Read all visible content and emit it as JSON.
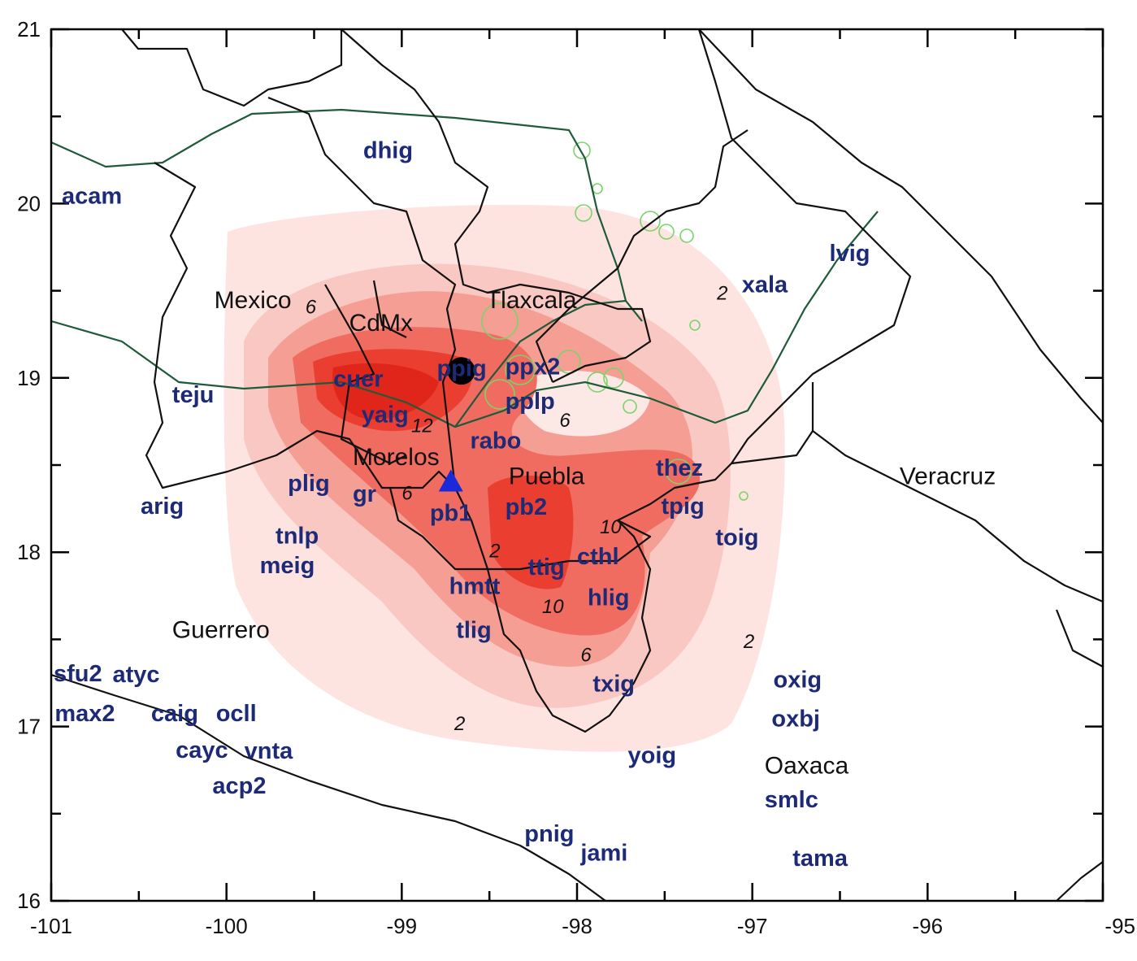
{
  "map": {
    "x_ticks": [
      "-101",
      "-100",
      "-99",
      "-98",
      "-97",
      "-96",
      "-95"
    ],
    "y_ticks": [
      "21",
      "20",
      "19",
      "18",
      "17",
      "16"
    ],
    "lon_range": [
      -101,
      -95
    ],
    "lat_range": [
      16,
      21
    ],
    "contour_colors": [
      "#fde4e1",
      "#f9c8c2",
      "#f59e94",
      "#f06c60",
      "#ea3f30",
      "#e0261a"
    ],
    "station_color": "#1c2a78",
    "regions": [
      {
        "name": "Mexico",
        "lon": -100.07,
        "lat": 19.4
      },
      {
        "name": "CdMx",
        "lon": -99.3,
        "lat": 19.27
      },
      {
        "name": "Tlaxcala",
        "lon": -98.52,
        "lat": 19.4
      },
      {
        "name": "Morelos",
        "lon": -99.28,
        "lat": 18.5
      },
      {
        "name": "Puebla",
        "lon": -98.39,
        "lat": 18.39
      },
      {
        "name": "Veracruz",
        "lon": -96.16,
        "lat": 18.39
      },
      {
        "name": "Guerrero",
        "lon": -100.31,
        "lat": 17.51
      },
      {
        "name": "Oaxaca",
        "lon": -96.93,
        "lat": 16.73
      }
    ],
    "contour_labels": [
      {
        "text": "6",
        "lon": -99.55,
        "lat": 19.37
      },
      {
        "text": "12",
        "lon": -99.15,
        "lat": 18.69
      },
      {
        "text": "6",
        "lon": -99.0,
        "lat": 18.45
      },
      {
        "text": "6",
        "lon": -98.1,
        "lat": 18.72
      },
      {
        "text": "2",
        "lon": -98.5,
        "lat": 17.97
      },
      {
        "text": "10",
        "lon": -97.87,
        "lat": 17.96
      },
      {
        "text": "10",
        "lon": -98.2,
        "lat": 17.65
      },
      {
        "text": "6",
        "lon": -97.98,
        "lat": 17.3
      },
      {
        "text": "2",
        "lon": -97.05,
        "lat": 17.45
      },
      {
        "text": "2",
        "lon": -98.7,
        "lat": 16.98
      },
      {
        "text": "2",
        "lon": -97.1,
        "lat": 19.45
      }
    ],
    "stations": [
      {
        "name": "dhig",
        "lon": -99.22,
        "lat": 20.26
      },
      {
        "name": "acam",
        "lon": -100.94,
        "lat": 20.0
      },
      {
        "name": "lvig",
        "lon": -96.56,
        "lat": 19.67
      },
      {
        "name": "xala",
        "lon": -97.06,
        "lat": 19.49
      },
      {
        "name": "teju",
        "lon": -100.31,
        "lat": 18.86
      },
      {
        "name": "cuer",
        "lon": -99.39,
        "lat": 18.95
      },
      {
        "name": "yaig",
        "lon": -99.23,
        "lat": 18.82
      },
      {
        "name": "ppig",
        "lon": -98.8,
        "lat": 19.01
      },
      {
        "name": "ppx2",
        "lon": -98.41,
        "lat": 19.02
      },
      {
        "name": "pplp",
        "lon": -98.41,
        "lat": 18.97
      },
      {
        "name": "rabo",
        "lon": -98.61,
        "lat": 18.52
      },
      {
        "name": "plig",
        "lon": -99.65,
        "lat": 18.35
      },
      {
        "name": "gr",
        "lon": -99.28,
        "lat": 18.29
      },
      {
        "name": "pb1",
        "lon": -98.84,
        "lat": 18.18
      },
      {
        "name": "pb2",
        "lon": -98.41,
        "lat": 18.29
      },
      {
        "name": "thez",
        "lon": -97.55,
        "lat": 18.44
      },
      {
        "name": "tpig",
        "lon": -97.52,
        "lat": 18.37
      },
      {
        "name": "arig",
        "lon": -100.49,
        "lat": 18.22
      },
      {
        "name": "tnlp",
        "lon": -99.72,
        "lat": 18.05
      },
      {
        "name": "meig",
        "lon": -99.81,
        "lat": 17.88
      },
      {
        "name": "toig",
        "lon": -97.21,
        "lat": 18.04
      },
      {
        "name": "ttig",
        "lon": -98.28,
        "lat": 17.87
      },
      {
        "name": "cthl",
        "lon": -98.0,
        "lat": 17.93
      },
      {
        "name": "hlig",
        "lon": -97.94,
        "lat": 17.77
      },
      {
        "name": "hmtt",
        "lon": -98.73,
        "lat": 17.76
      },
      {
        "name": "tlig",
        "lon": -98.69,
        "lat": 17.51
      },
      {
        "name": "txig",
        "lon": -97.91,
        "lat": 17.2
      },
      {
        "name": "yoig",
        "lon": -97.71,
        "lat": 16.79
      },
      {
        "name": "oxbj",
        "lon": -96.89,
        "lat": 17.0
      },
      {
        "name": "oxig",
        "lon": -96.88,
        "lat": 17.0
      },
      {
        "name": "smlc",
        "lon": -96.93,
        "lat": 16.61
      },
      {
        "name": "tama",
        "lon": -96.77,
        "lat": 16.2
      },
      {
        "name": "pnig",
        "lon": -98.3,
        "lat": 16.34
      },
      {
        "name": "jami",
        "lon": -97.98,
        "lat": 16.23
      },
      {
        "name": "sfu2",
        "lon": -101.1,
        "lat": 17.26
      },
      {
        "name": "max2",
        "lon": -100.98,
        "lat": 17.18
      },
      {
        "name": "atyc",
        "lon": -100.65,
        "lat": 17.18
      },
      {
        "name": "caig",
        "lon": -100.43,
        "lat": 17.03
      },
      {
        "name": "ocll",
        "lon": -100.06,
        "lat": 17.03
      },
      {
        "name": "cayc",
        "lon": -100.29,
        "lat": 16.97
      },
      {
        "name": "vnta",
        "lon": -100.0,
        "lat": 16.89
      },
      {
        "name": "acp2",
        "lon": -100.08,
        "lat": 16.84
      }
    ],
    "epicenter": {
      "lon": -98.66,
      "lat": 19.04
    },
    "triangle_station": {
      "lon": -98.72,
      "lat": 18.4
    }
  }
}
